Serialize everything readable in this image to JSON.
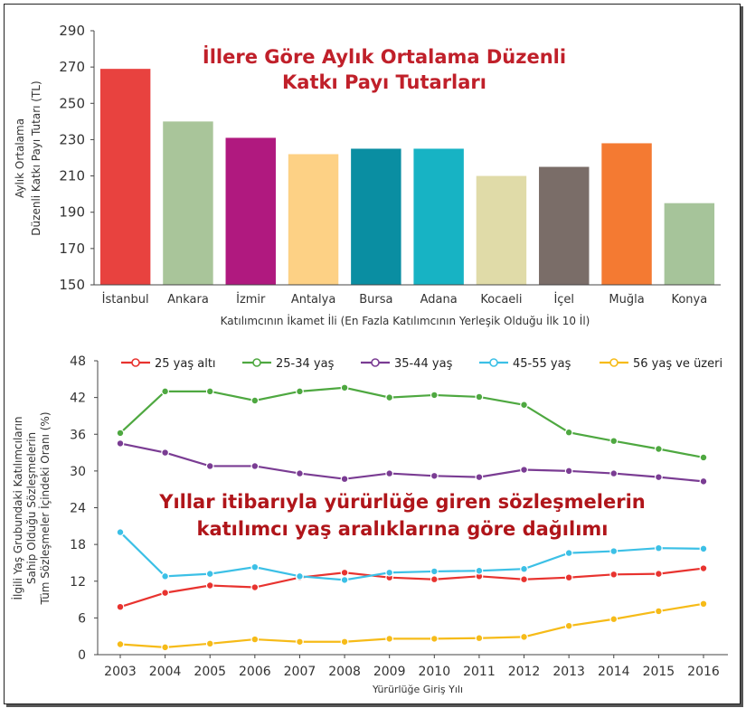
{
  "chart_data": [
    {
      "type": "bar",
      "title_lines": [
        "İllere Göre Aylık Ortalama Düzenli",
        "Katkı Payı Tutarları"
      ],
      "ylabel_lines": [
        "Aylık Ortalama",
        "Düzenli Katkı Payı Tutarı (TL)"
      ],
      "xlabel": "Katılımcının İkamet İli (En Fazla Katılımcının Yerleşik Olduğu İlk 10 İl)",
      "categories": [
        "İstanbul",
        "Ankara",
        "İzmir",
        "Antalya",
        "Bursa",
        "Adana",
        "Kocaeli",
        "İçel",
        "Muğla",
        "Konya"
      ],
      "values": [
        269,
        240,
        231,
        222,
        225,
        225,
        210,
        215,
        228,
        195
      ],
      "colors": [
        "#e8423f",
        "#a9c59a",
        "#b0197f",
        "#fdd185",
        "#0a8ea2",
        "#17b3c4",
        "#e0dba8",
        "#7a6d68",
        "#f47a32",
        "#a6c49a"
      ],
      "ylim": [
        150,
        290
      ],
      "yticks": [
        "150",
        "170",
        "190",
        "210",
        "230",
        "250",
        "270",
        "290"
      ],
      "grid": false
    },
    {
      "type": "line",
      "title_lines": [
        "Yıllar itibarıyla yürürlüğe giren sözleşmelerin",
        "katılımcı yaş aralıklarına göre dağılımı"
      ],
      "ylabel_lines": [
        "İlgili Yaş Grubundaki Katılımcıların",
        "Sahip Olduğu Sözleşmelerin",
        "Tüm Sözleşmeler İçindeki Oranı (%)"
      ],
      "xlabel": "Yürürlüğe Giriş Yılı",
      "x": [
        "2003",
        "2004",
        "2005",
        "2006",
        "2007",
        "2008",
        "2009",
        "2010",
        "2011",
        "2012",
        "2013",
        "2014",
        "2015",
        "2016"
      ],
      "ylim": [
        0,
        48
      ],
      "yticks": [
        "0",
        "6",
        "12",
        "18",
        "24",
        "30",
        "36",
        "42",
        "48"
      ],
      "legend_position": "top",
      "series": [
        {
          "name": "25 yaş altı",
          "color": "#e8332f",
          "values": [
            7.8,
            10.1,
            11.3,
            11.0,
            12.6,
            13.4,
            12.6,
            12.3,
            12.8,
            12.3,
            12.6,
            13.1,
            13.2,
            14.1
          ]
        },
        {
          "name": "25-34 yaş",
          "color": "#4ea840",
          "values": [
            36.2,
            43.0,
            43.0,
            41.5,
            43.0,
            43.6,
            42.0,
            42.4,
            42.1,
            40.8,
            36.3,
            34.9,
            33.6,
            32.2
          ]
        },
        {
          "name": "35-44 yaş",
          "color": "#7a3c93",
          "values": [
            34.5,
            33.0,
            30.8,
            30.8,
            29.6,
            28.7,
            29.6,
            29.2,
            29.0,
            30.2,
            30.0,
            29.6,
            29.0,
            28.3
          ]
        },
        {
          "name": "45-55 yaş",
          "color": "#3cc0e6",
          "values": [
            20.0,
            12.8,
            13.2,
            14.3,
            12.8,
            12.2,
            13.4,
            13.6,
            13.7,
            14.0,
            16.6,
            16.9,
            17.4,
            17.3
          ]
        },
        {
          "name": "56 yaş ve üzeri",
          "color": "#f6bb18",
          "values": [
            1.7,
            1.2,
            1.8,
            2.5,
            2.1,
            2.1,
            2.6,
            2.6,
            2.7,
            2.9,
            4.7,
            5.8,
            7.1,
            8.3
          ]
        }
      ],
      "grid": false
    }
  ]
}
